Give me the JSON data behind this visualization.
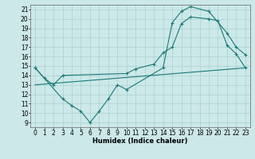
{
  "title": "",
  "xlabel": "Humidex (Indice chaleur)",
  "background_color": "#cce8e8",
  "grid_color": "#aad0d0",
  "line_color": "#1a7878",
  "xlim": [
    -0.5,
    23.5
  ],
  "ylim": [
    8.5,
    21.5
  ],
  "xticks": [
    0,
    1,
    2,
    3,
    4,
    5,
    6,
    7,
    8,
    9,
    10,
    11,
    12,
    13,
    14,
    15,
    16,
    17,
    18,
    19,
    20,
    21,
    22,
    23
  ],
  "yticks": [
    9,
    10,
    11,
    12,
    13,
    14,
    15,
    16,
    17,
    18,
    19,
    20,
    21
  ],
  "line1_x": [
    0,
    1,
    2,
    3,
    10,
    11,
    13,
    14,
    15,
    16,
    17,
    19,
    20,
    21,
    22,
    23
  ],
  "line1_y": [
    14.8,
    13.7,
    13.0,
    14.0,
    14.2,
    14.7,
    15.2,
    16.4,
    17.0,
    19.5,
    20.2,
    20.0,
    19.8,
    17.2,
    16.3,
    14.8
  ],
  "line2_x": [
    0,
    3,
    4,
    5,
    6,
    7,
    8,
    9,
    10,
    14,
    15,
    16,
    17,
    19,
    21,
    22,
    23
  ],
  "line2_y": [
    14.8,
    11.5,
    10.8,
    10.2,
    9.0,
    10.2,
    11.5,
    13.0,
    12.5,
    14.8,
    19.6,
    20.8,
    21.3,
    20.8,
    18.5,
    17.0,
    16.2
  ],
  "line3_x": [
    0,
    23
  ],
  "line3_y": [
    13.0,
    14.8
  ],
  "xlabel_fontsize": 6,
  "tick_fontsize": 5.5
}
